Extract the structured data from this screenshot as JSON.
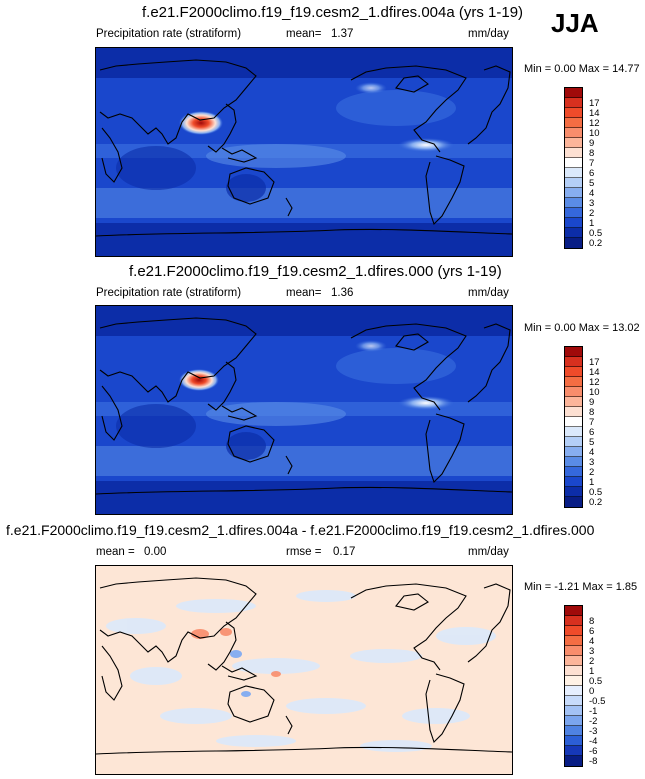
{
  "season": "JJA",
  "panels": [
    {
      "title": "f.e21.F2000climo.f19_f19.cesm2_1.dfires.004a (yrs 1-19)",
      "variable": "Precipitation rate (stratiform)",
      "stat_label": "mean=",
      "stat_value": "1.37",
      "units": "mm/day",
      "min_label": "Min =",
      "min_value": "0.00",
      "max_label": "Max =",
      "max_value": "14.77",
      "colorbar_labels": [
        "17",
        "14",
        "12",
        "10",
        "9",
        "8",
        "7",
        "6",
        "5",
        "4",
        "3",
        "2",
        "1",
        "0.5",
        "0.2"
      ]
    },
    {
      "title": "f.e21.F2000climo.f19_f19.cesm2_1.dfires.000 (yrs 1-19)",
      "variable": "Precipitation rate (stratiform)",
      "stat_label": "mean=",
      "stat_value": "1.36",
      "units": "mm/day",
      "min_label": "Min =",
      "min_value": "0.00",
      "max_label": "Max =",
      "max_value": "13.02",
      "colorbar_labels": [
        "17",
        "14",
        "12",
        "10",
        "9",
        "8",
        "7",
        "6",
        "5",
        "4",
        "3",
        "2",
        "1",
        "0.5",
        "0.2"
      ]
    },
    {
      "title": "f.e21.F2000climo.f19_f19.cesm2_1.dfires.004a - f.e21.F2000climo.f19_f19.cesm2_1.dfires.000",
      "variable_label": "mean =",
      "variable_value": "0.00",
      "stat_label": "rmse =",
      "stat_value": "0.17",
      "units": "mm/day",
      "min_label": "Min =",
      "min_value": "-1.21",
      "max_label": "Max =",
      "max_value": "1.85",
      "colorbar_labels": [
        "8",
        "6",
        "4",
        "3",
        "2",
        "1",
        "0.5",
        "0",
        "-0.5",
        "-1",
        "-2",
        "-3",
        "-4",
        "-6",
        "-8"
      ]
    }
  ],
  "colors": {
    "precip_scale": [
      "#a00a0a",
      "#d7301f",
      "#ef4b2a",
      "#f46d43",
      "#f88d6c",
      "#fcb59a",
      "#fde0d2",
      "#ffffff",
      "#dbe9fb",
      "#b4cff7",
      "#87aef0",
      "#5a8ce6",
      "#3568dc",
      "#1a47cc",
      "#0c2da8",
      "#081d85"
    ],
    "diff_scale": [
      "#a00a0a",
      "#d7301f",
      "#ef4b2a",
      "#f46d43",
      "#f88d6c",
      "#fcb59a",
      "#fde0d2",
      "#fff2e6",
      "#e6efff",
      "#c7dbfb",
      "#a3c2f5",
      "#7ba5ee",
      "#4f82e2",
      "#2c5fd6",
      "#1638b8",
      "#081d85"
    ]
  }
}
